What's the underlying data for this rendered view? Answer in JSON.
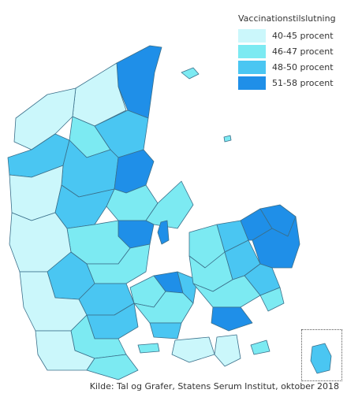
{
  "legend": {
    "title": "Vaccinationstilslutning",
    "items": [
      {
        "label": "40-45 procent",
        "color": "#cbf7fb"
      },
      {
        "label": "46-47 procent",
        "color": "#7ceaf2"
      },
      {
        "label": "48-50 procent",
        "color": "#4ac6f2"
      },
      {
        "label": "51-58 procent",
        "color": "#1f8fe8"
      }
    ]
  },
  "source": "Kilde: Tal og Grafer, Statens Serum Institut, oktober 2018",
  "colors": {
    "background": "#ffffff",
    "border": "#3a6f8a"
  }
}
